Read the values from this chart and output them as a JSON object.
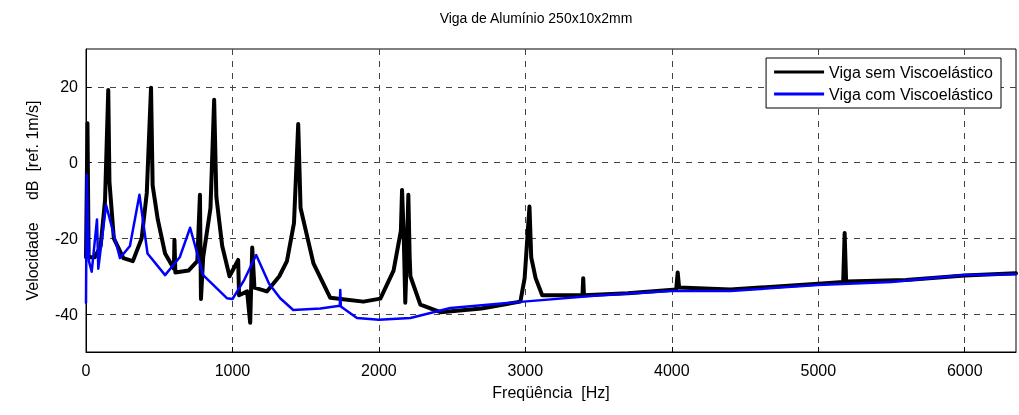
{
  "chart_data": {
    "type": "line",
    "title": "Viga de Alumínio 250x10x2mm",
    "xlabel": "Freqüência  [Hz]",
    "ylabel": "Velocidade     dB  [ref. 1m/s]",
    "xlim": [
      0,
      6350
    ],
    "xticks": [
      0,
      1000,
      2000,
      3000,
      4000,
      5000,
      6000
    ],
    "ylim": [
      -50,
      30
    ],
    "yticks": [
      -40,
      -20,
      0,
      20
    ],
    "grid": true,
    "legend": "top right",
    "marker": "none",
    "line_style": "solid",
    "series": [
      {
        "name": "Viga sem Viscoelástico",
        "color": "#000000",
        "x": [
          0,
          10,
          18,
          60,
          100,
          130,
          152,
          160,
          190,
          255,
          320,
          380,
          415,
          444,
          455,
          490,
          540,
          600,
          604,
          610,
          700,
          760,
          778,
          785,
          800,
          850,
          875,
          890,
          930,
          980,
          1039,
          1045,
          1100,
          1121,
          1135,
          1150,
          1235,
          1320,
          1372,
          1420,
          1449,
          1465,
          1553,
          1668,
          1740,
          1894,
          2010,
          2100,
          2150,
          2158,
          2170,
          2180,
          2190,
          2201,
          2210,
          2215,
          2283,
          2420,
          2700,
          2966,
          2995,
          3028,
          3040,
          3070,
          3115,
          3300,
          3390,
          3395,
          3400,
          3700,
          4030,
          4040,
          4050,
          4400,
          5000,
          5170,
          5180,
          5190,
          5600,
          6000,
          6350
        ],
        "values": [
          -25,
          10.4,
          -25,
          -25,
          -22,
          -10,
          19.2,
          -5,
          -20,
          -25.2,
          -26,
          -20,
          -8,
          19.8,
          -6,
          -15,
          -24,
          -28,
          -20.4,
          -29,
          -28.5,
          -26,
          -8.5,
          -36,
          -25,
          -12,
          16.6,
          -9,
          -22,
          -30,
          -25.7,
          -35,
          -34,
          -42.3,
          -22.4,
          -33,
          -34,
          -30,
          -26,
          -16,
          10.2,
          -12,
          -26.6,
          -35.7,
          -36,
          -36.7,
          -35.9,
          -28.5,
          -18,
          -7.2,
          -20,
          -37,
          -25,
          -8.5,
          -25,
          -30,
          -37.5,
          -39.5,
          -38.5,
          -36.7,
          -30.5,
          -11.6,
          -25,
          -30.5,
          -35,
          -35,
          -35,
          -30.5,
          -35,
          -34.5,
          -33.5,
          -29,
          -33,
          -33.5,
          -32,
          -31.5,
          -18.6,
          -31.4,
          -31,
          -29.8,
          -29.2
        ]
      },
      {
        "name": "Viga com Viscoelástico",
        "color": "#0000ff",
        "x": [
          0,
          5,
          20,
          39,
          75,
          84,
          137,
          232,
          300,
          365,
          420,
          540,
          640,
          711,
          800,
          962,
          1000,
          1080,
          1162,
          1250,
          1326,
          1415,
          1600,
          1733,
          1736,
          1740,
          1850,
          2000,
          2215,
          2488,
          2987,
          3513,
          3997,
          4402,
          4995,
          5500,
          5995,
          6350
        ],
        "values": [
          -37,
          -3.2,
          -26,
          -28.8,
          -15,
          -28,
          -11.2,
          -25.2,
          -22,
          -8.5,
          -24,
          -29.7,
          -25,
          -17.2,
          -29.7,
          -35.8,
          -36,
          -31,
          -24.4,
          -32,
          -35.8,
          -38.9,
          -38.5,
          -37.8,
          -33.6,
          -38,
          -41,
          -41.5,
          -41,
          -38.4,
          -36.7,
          -35,
          -33.9,
          -33.9,
          -32.3,
          -31.5,
          -29.7,
          -29.5
        ]
      }
    ]
  }
}
